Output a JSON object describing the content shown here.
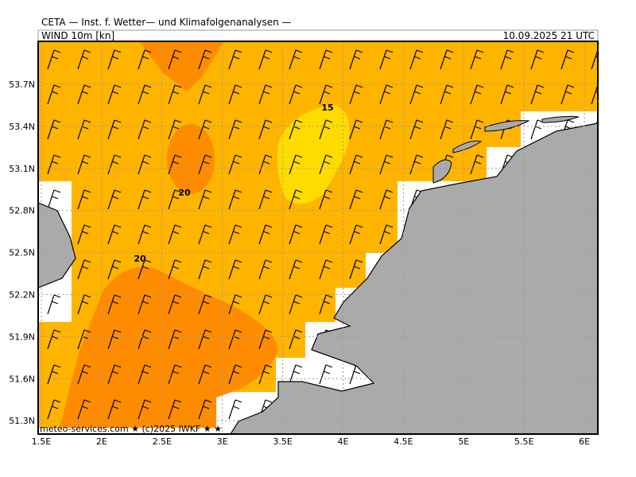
{
  "header": {
    "title": "CETA — Inst. f. Wetter— und Klimafolgenanalysen —",
    "field": "WIND 10m [kn]",
    "valid": "10.09.2025 21 UTC"
  },
  "map": {
    "lat_labels": [
      "53.7N",
      "53.4N",
      "53.1N",
      "52.8N",
      "52.5N",
      "52.2N",
      "51.9N",
      "51.6N",
      "51.3N"
    ],
    "lon_labels": [
      "1.5E",
      "2E",
      "2.5E",
      "3E",
      "3.5E",
      "4E",
      "4.5E",
      "5E",
      "5.5E",
      "6E"
    ],
    "contour_labels": [
      "15",
      "20",
      "20"
    ],
    "footer": "meteo-services.com ★ (c)2025 IWKF ★ ★"
  }
}
